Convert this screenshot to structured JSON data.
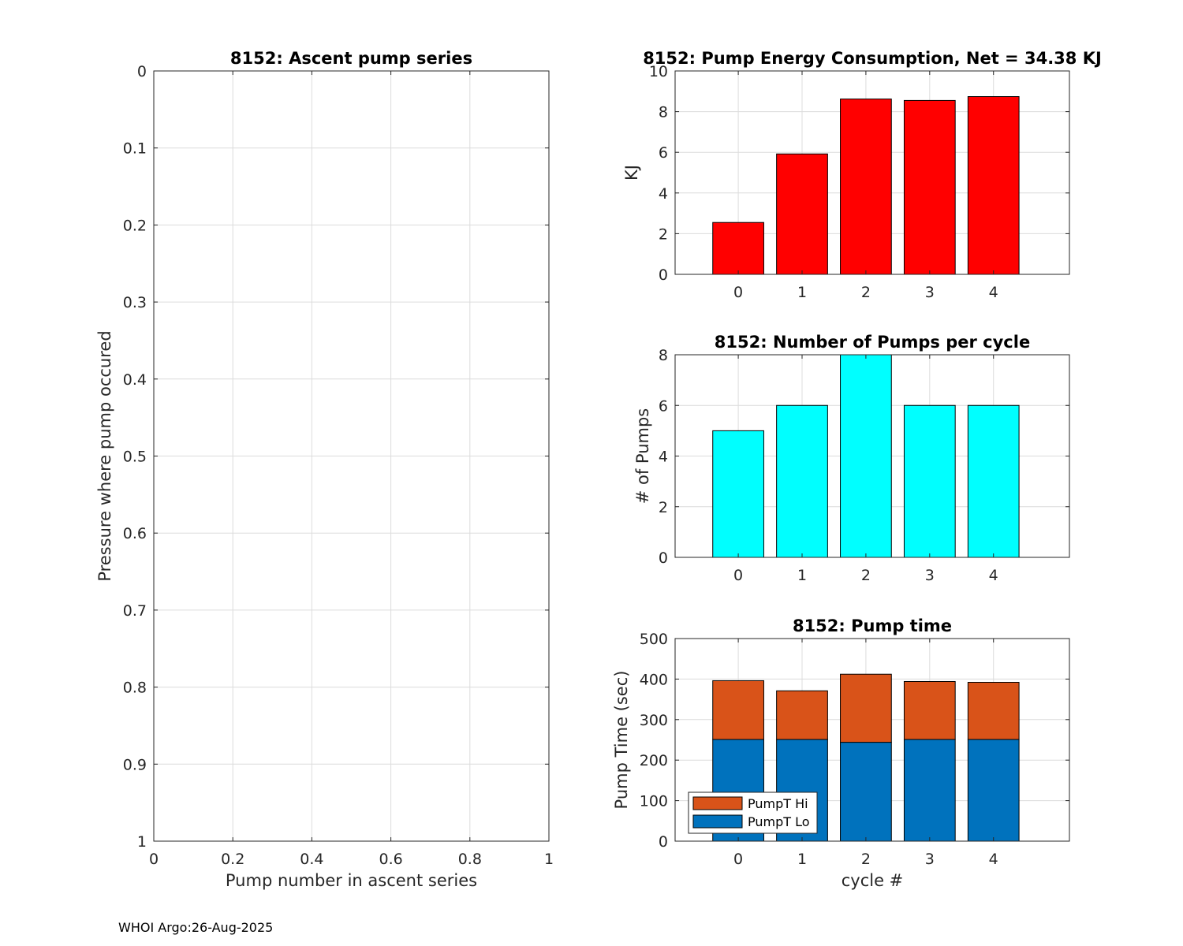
{
  "footer": "WHOI Argo:26-Aug-2025",
  "chart_data": [
    {
      "id": "ascent",
      "type": "scatter",
      "title": "8152: Ascent pump series",
      "xlabel": "Pump number in ascent series",
      "ylabel": "Pressure where pump occured",
      "xlim": [
        0,
        1
      ],
      "ylim": [
        0,
        1
      ],
      "y_reversed": true,
      "x_ticks": [
        "0",
        "0.2",
        "0.4",
        "0.6",
        "0.8",
        "1"
      ],
      "y_ticks": [
        "0",
        "0.1",
        "0.2",
        "0.3",
        "0.4",
        "0.5",
        "0.6",
        "0.7",
        "0.8",
        "0.9",
        "1"
      ],
      "grid": true,
      "points": []
    },
    {
      "id": "energy",
      "type": "bar",
      "title": "8152: Pump Energy Consumption,  Net =  34.38 KJ",
      "xlabel": "",
      "ylabel": "KJ",
      "categories": [
        "0",
        "1",
        "2",
        "3",
        "4"
      ],
      "values": [
        2.55,
        5.92,
        8.62,
        8.55,
        8.74
      ],
      "color": "#ff0000",
      "ylim": [
        0,
        10
      ],
      "y_ticks": [
        "0",
        "2",
        "4",
        "6",
        "8",
        "10"
      ],
      "grid": true
    },
    {
      "id": "pumps",
      "type": "bar",
      "title": "8152: Number of Pumps per cycle",
      "xlabel": "",
      "ylabel": "# of Pumps",
      "categories": [
        "0",
        "1",
        "2",
        "3",
        "4"
      ],
      "values": [
        5,
        6,
        8,
        6,
        6
      ],
      "color": "#00ffff",
      "ylim": [
        0,
        8
      ],
      "y_ticks": [
        "0",
        "2",
        "4",
        "6",
        "8"
      ],
      "grid": true
    },
    {
      "id": "pumptime",
      "type": "bar",
      "stacked": true,
      "title": "8152: Pump time",
      "xlabel": "cycle #",
      "ylabel": "Pump Time (sec)",
      "categories": [
        "0",
        "1",
        "2",
        "3",
        "4"
      ],
      "series": [
        {
          "name": "PumpT Lo",
          "values": [
            251,
            251,
            244,
            251,
            251
          ],
          "color": "#0072bd"
        },
        {
          "name": "PumpT Hi",
          "values": [
            145,
            120,
            168,
            143,
            141
          ],
          "color": "#d95319"
        }
      ],
      "legend_order": [
        "PumpT Hi",
        "PumpT Lo"
      ],
      "legend_position": "bottom-left",
      "ylim": [
        0,
        500
      ],
      "y_ticks": [
        "0",
        "100",
        "200",
        "300",
        "400",
        "500"
      ],
      "grid": true
    }
  ]
}
